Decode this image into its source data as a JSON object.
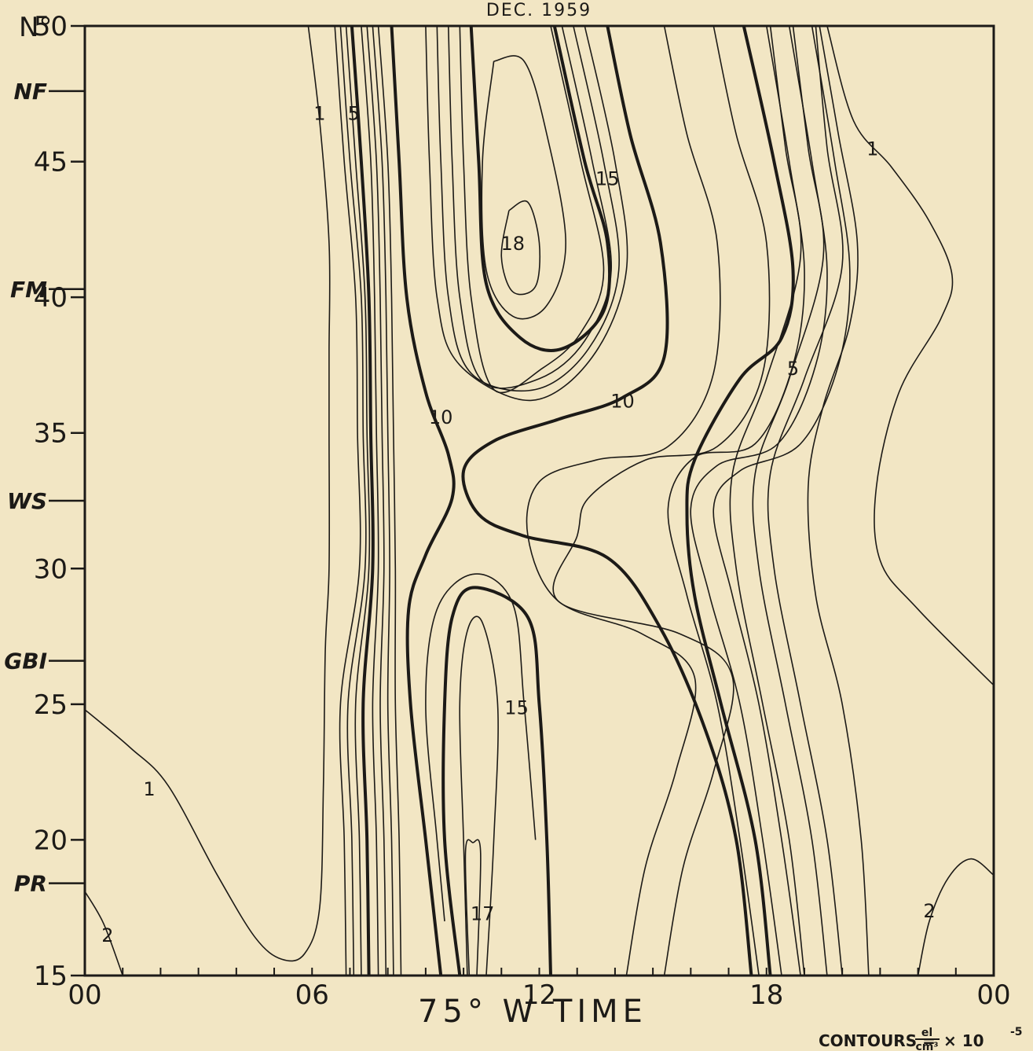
{
  "chart_data": {
    "type": "contour",
    "title": "DEC. 1959",
    "xlabel": "75° W TIME",
    "ylabel": "N°",
    "xlim": [
      0,
      24
    ],
    "ylim": [
      15,
      50
    ],
    "x_ticks": [
      "00",
      "06",
      "12",
      "18",
      "00"
    ],
    "y_ticks": [
      "15",
      "20",
      "25",
      "30",
      "35",
      "40",
      "45",
      "50"
    ],
    "stations": [
      {
        "name": "NF",
        "lat": 47.6
      },
      {
        "name": "FM",
        "lat": 40.3
      },
      {
        "name": "WS",
        "lat": 32.5
      },
      {
        "name": "GBI",
        "lat": 26.6
      },
      {
        "name": "PR",
        "lat": 18.4
      }
    ],
    "contour_labels": [
      {
        "text": "1",
        "x": 6.2,
        "y": 46.8
      },
      {
        "text": "5",
        "x": 7.1,
        "y": 46.8
      },
      {
        "text": "18",
        "x": 11.3,
        "y": 42.0
      },
      {
        "text": "15",
        "x": 13.8,
        "y": 44.4
      },
      {
        "text": "1",
        "x": 20.8,
        "y": 45.5
      },
      {
        "text": "10",
        "x": 9.4,
        "y": 35.6
      },
      {
        "text": "10",
        "x": 14.2,
        "y": 36.2
      },
      {
        "text": "5",
        "x": 18.7,
        "y": 37.4
      },
      {
        "text": "15",
        "x": 11.4,
        "y": 24.9
      },
      {
        "text": "1",
        "x": 1.7,
        "y": 21.9
      },
      {
        "text": "17",
        "x": 10.5,
        "y": 17.3
      },
      {
        "text": "2",
        "x": 0.6,
        "y": 16.5
      },
      {
        "text": "2",
        "x": 22.3,
        "y": 17.4
      }
    ],
    "footnote": "CONTOURS = el/cm3 × 10^-5",
    "footnote_parts": {
      "prefix": "CONTOURS =",
      "numerator": "el",
      "denominator": "cm³",
      "suffix": "× 10",
      "exponent": "-5"
    }
  }
}
